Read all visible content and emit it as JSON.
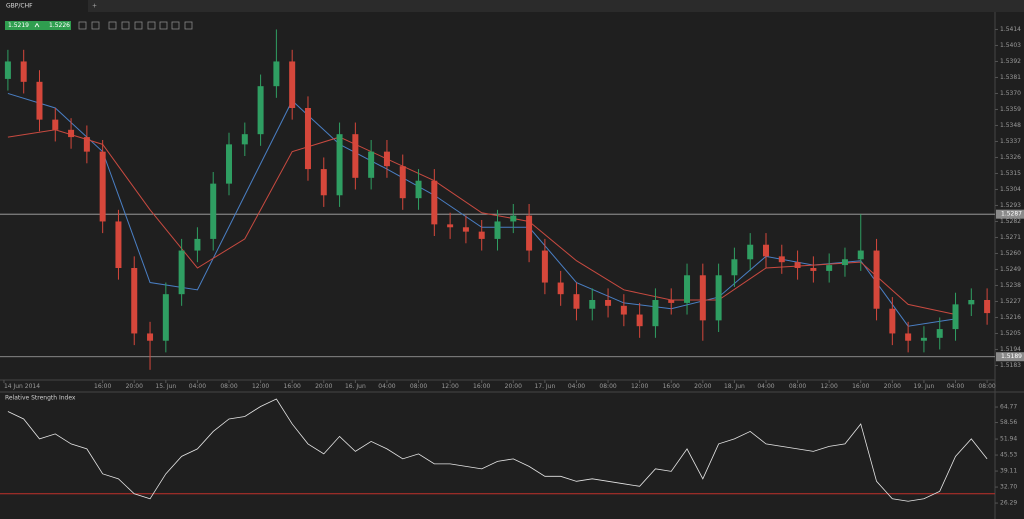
{
  "tab": "GBP/CHF",
  "quote": {
    "bid": "1.5219",
    "ask": "1.5226"
  },
  "chart_data": [
    {
      "type": "candlestick",
      "xlim": [
        -9,
        117
      ],
      "ylim": [
        1.5173,
        1.5426
      ],
      "yticks": [
        1.5414,
        1.5403,
        1.5392,
        1.5381,
        {
          "value": 1.537,
          "label": "1.5370"
        },
        1.5359,
        1.5348,
        1.5337,
        1.5326,
        1.5315,
        1.5304,
        1.5293,
        1.5282,
        1.5271,
        {
          "value": 1.526,
          "label": "1.5260"
        },
        1.5249,
        1.5238,
        1.5227,
        1.5216,
        1.5205,
        1.5194,
        1.5183
      ],
      "xticks": [
        {
          "value": -8.5,
          "label": "14 Jun 2014"
        },
        {
          "value": 4,
          "label": "16:00"
        },
        {
          "value": 8,
          "label": "20:00"
        },
        {
          "value": 12,
          "label": "15. Jun"
        },
        {
          "value": 16,
          "label": "04:00"
        },
        {
          "value": 20,
          "label": "08:00"
        },
        {
          "value": 24,
          "label": "12:00"
        },
        {
          "value": 28,
          "label": "16:00"
        },
        {
          "value": 32,
          "label": "20:00"
        },
        {
          "value": 36,
          "label": "16. Jun"
        },
        {
          "value": 40,
          "label": "04:00"
        },
        {
          "value": 44,
          "label": "08:00"
        },
        {
          "value": 48,
          "label": "12:00"
        },
        {
          "value": 52,
          "label": "16:00"
        },
        {
          "value": 56,
          "label": "20:00"
        },
        {
          "value": 60,
          "label": "17. Jun"
        },
        {
          "value": 64,
          "label": "04:00"
        },
        {
          "value": 68,
          "label": "08:00"
        },
        {
          "value": 72,
          "label": "12:00"
        },
        {
          "value": 76,
          "label": "16:00"
        },
        {
          "value": 80,
          "label": "20:00"
        },
        {
          "value": 84,
          "label": "18. Jun"
        },
        {
          "value": 88,
          "label": "04:00"
        },
        {
          "value": 92,
          "label": "08:00"
        },
        {
          "value": 96,
          "label": "12:00"
        },
        {
          "value": 100,
          "label": "16:00"
        },
        {
          "value": 104,
          "label": "20:00"
        },
        {
          "value": 108,
          "label": "19. Jun"
        },
        {
          "value": 112,
          "label": "04:00"
        },
        {
          "value": 116,
          "label": "08:00"
        }
      ],
      "hlines": [
        1.5287,
        1.5189
      ],
      "up_color": "#2f9e62",
      "down_color": "#d5473b",
      "x": [
        -8,
        -6,
        -4,
        -2,
        0,
        2,
        4,
        6,
        8,
        10,
        12,
        14,
        16,
        18,
        20,
        22,
        24,
        26,
        28,
        30,
        32,
        34,
        36,
        38,
        40,
        42,
        44,
        46,
        48,
        50,
        52,
        54,
        56,
        58,
        60,
        62,
        64,
        66,
        68,
        70,
        72,
        74,
        76,
        78,
        80,
        82,
        84,
        86,
        88,
        90,
        92,
        94,
        96,
        98,
        100,
        102,
        104,
        106,
        108,
        110,
        112,
        114,
        116
      ],
      "open": [
        1.538,
        1.5392,
        1.5378,
        1.5352,
        1.5345,
        1.534,
        1.533,
        1.5282,
        1.525,
        1.5205,
        1.52,
        1.5232,
        1.5262,
        1.527,
        1.5308,
        1.5335,
        1.5342,
        1.5375,
        1.5392,
        1.536,
        1.5318,
        1.53,
        1.5342,
        1.5312,
        1.533,
        1.532,
        1.5298,
        1.531,
        1.528,
        1.5278,
        1.5275,
        1.527,
        1.5282,
        1.5286,
        1.5262,
        1.524,
        1.5232,
        1.5222,
        1.5228,
        1.5224,
        1.5218,
        1.521,
        1.5228,
        1.5226,
        1.5245,
        1.5214,
        1.5245,
        1.5256,
        1.5266,
        1.5258,
        1.5254,
        1.525,
        1.5248,
        1.5252,
        1.5256,
        1.5262,
        1.5222,
        1.5205,
        1.52,
        1.5202,
        1.5208,
        1.5225,
        1.5228
      ],
      "high": [
        1.54,
        1.54,
        1.5386,
        1.536,
        1.5353,
        1.5348,
        1.5338,
        1.529,
        1.5258,
        1.5213,
        1.524,
        1.527,
        1.5278,
        1.5316,
        1.5343,
        1.535,
        1.5383,
        1.5414,
        1.54,
        1.5368,
        1.5326,
        1.535,
        1.535,
        1.5338,
        1.5338,
        1.5328,
        1.5318,
        1.5318,
        1.5288,
        1.5286,
        1.5283,
        1.529,
        1.5294,
        1.5294,
        1.527,
        1.5248,
        1.524,
        1.5236,
        1.5236,
        1.5232,
        1.5226,
        1.5236,
        1.5236,
        1.5253,
        1.5253,
        1.5253,
        1.5264,
        1.5274,
        1.5274,
        1.5266,
        1.5262,
        1.5258,
        1.526,
        1.5264,
        1.5287,
        1.527,
        1.523,
        1.5213,
        1.521,
        1.5216,
        1.5233,
        1.5236,
        1.5236
      ],
      "low": [
        1.5372,
        1.537,
        1.5344,
        1.5337,
        1.5332,
        1.5322,
        1.5274,
        1.5242,
        1.5197,
        1.518,
        1.5192,
        1.5224,
        1.5254,
        1.5262,
        1.53,
        1.5327,
        1.5334,
        1.5367,
        1.5352,
        1.531,
        1.5292,
        1.5292,
        1.5304,
        1.5304,
        1.5312,
        1.529,
        1.529,
        1.5272,
        1.527,
        1.5267,
        1.5262,
        1.5262,
        1.5274,
        1.5254,
        1.5232,
        1.5224,
        1.5214,
        1.5214,
        1.5216,
        1.521,
        1.5202,
        1.5202,
        1.5218,
        1.5218,
        1.52,
        1.5206,
        1.5237,
        1.5248,
        1.525,
        1.5246,
        1.5242,
        1.524,
        1.524,
        1.5244,
        1.5248,
        1.5214,
        1.5197,
        1.5192,
        1.5192,
        1.5194,
        1.52,
        1.5217,
        1.5211
      ],
      "close": [
        1.5392,
        1.5378,
        1.5352,
        1.5345,
        1.534,
        1.533,
        1.5282,
        1.525,
        1.5205,
        1.52,
        1.5232,
        1.5262,
        1.527,
        1.5308,
        1.5335,
        1.5342,
        1.5375,
        1.5392,
        1.536,
        1.5318,
        1.53,
        1.5342,
        1.5312,
        1.533,
        1.532,
        1.5298,
        1.531,
        1.528,
        1.5278,
        1.5275,
        1.527,
        1.5282,
        1.5286,
        1.5262,
        1.524,
        1.5232,
        1.5222,
        1.5228,
        1.5224,
        1.5218,
        1.521,
        1.5228,
        1.5226,
        1.5245,
        1.5214,
        1.5245,
        1.5256,
        1.5266,
        1.5258,
        1.5254,
        1.525,
        1.5248,
        1.5252,
        1.5256,
        1.5262,
        1.5222,
        1.5205,
        1.52,
        1.5202,
        1.5208,
        1.5225,
        1.5228,
        1.5219
      ],
      "series": [
        {
          "color": "#4a7fc4",
          "x": [
            -8,
            -2,
            4,
            10,
            16,
            22,
            28,
            34,
            40,
            46,
            52,
            58,
            64,
            70,
            76,
            82,
            88,
            94,
            100,
            106,
            112
          ],
          "values": [
            1.537,
            1.536,
            1.533,
            1.524,
            1.5235,
            1.53,
            1.5365,
            1.5335,
            1.5318,
            1.53,
            1.5278,
            1.5278,
            1.524,
            1.5226,
            1.5222,
            1.523,
            1.5258,
            1.5252,
            1.5255,
            1.521,
            1.5215
          ]
        },
        {
          "color": "#c84a40",
          "x": [
            -8,
            -2,
            4,
            10,
            16,
            22,
            28,
            34,
            40,
            46,
            52,
            58,
            64,
            70,
            76,
            82,
            88,
            94,
            100,
            106,
            112
          ],
          "values": [
            1.534,
            1.5345,
            1.5335,
            1.529,
            1.525,
            1.527,
            1.533,
            1.534,
            1.5325,
            1.531,
            1.5288,
            1.5282,
            1.5255,
            1.5235,
            1.5228,
            1.5228,
            1.525,
            1.5252,
            1.5254,
            1.5225,
            1.5218
          ]
        }
      ]
    },
    {
      "type": "line",
      "title": "Relative Strength Index",
      "ylim": [
        20.7,
        69.2
      ],
      "yticks": [
        64.77,
        58.56,
        51.94,
        45.53,
        39.11,
        {
          "value": 32.7,
          "label": "32.70"
        },
        26.29
      ],
      "level": 30,
      "level_color": "#c0302a",
      "color": "#e6e6e6",
      "values": [
        63,
        60,
        52,
        54,
        50,
        48,
        38,
        36,
        30,
        28,
        38,
        45,
        48,
        55,
        60,
        61,
        65,
        68,
        58,
        50,
        46,
        53,
        47,
        51,
        48,
        44,
        46,
        42,
        42,
        41,
        40,
        43,
        44,
        41,
        37,
        37,
        35,
        36,
        35,
        34,
        33,
        40,
        39,
        48,
        36,
        50,
        52,
        55,
        50,
        49,
        48,
        47,
        49,
        50,
        58,
        35,
        28,
        27,
        28,
        31,
        45,
        52,
        44
      ]
    }
  ]
}
